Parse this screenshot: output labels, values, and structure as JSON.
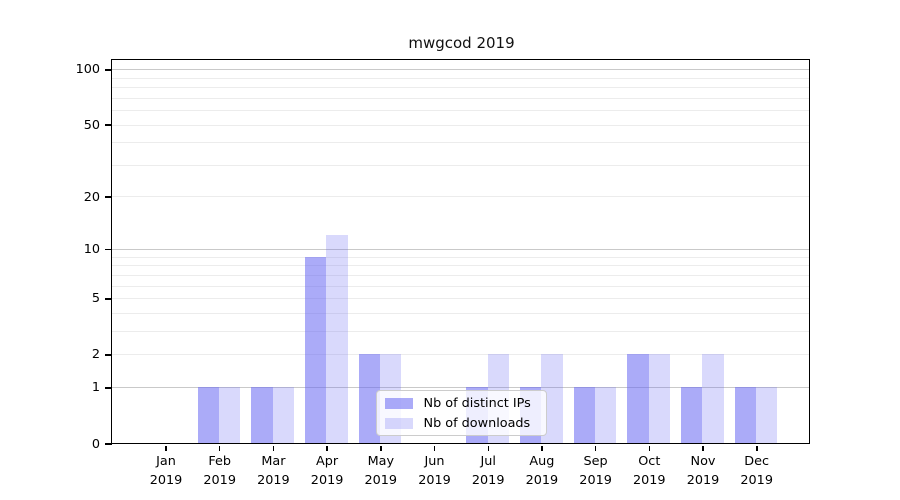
{
  "chart_data": {
    "type": "bar",
    "title": "mwgcod 2019",
    "x_tick_labels": [
      {
        "month": "Jan",
        "year": "2019"
      },
      {
        "month": "Feb",
        "year": "2019"
      },
      {
        "month": "Mar",
        "year": "2019"
      },
      {
        "month": "Apr",
        "year": "2019"
      },
      {
        "month": "May",
        "year": "2019"
      },
      {
        "month": "Jun",
        "year": "2019"
      },
      {
        "month": "Jul",
        "year": "2019"
      },
      {
        "month": "Aug",
        "year": "2019"
      },
      {
        "month": "Sep",
        "year": "2019"
      },
      {
        "month": "Oct",
        "year": "2019"
      },
      {
        "month": "Nov",
        "year": "2019"
      },
      {
        "month": "Dec",
        "year": "2019"
      }
    ],
    "series": [
      {
        "name": "Nb of distinct IPs",
        "color": "rgba(102,102,242,0.55)",
        "values": [
          0,
          1,
          1,
          9,
          2,
          0,
          1,
          1,
          1,
          2,
          1,
          1
        ]
      },
      {
        "name": "Nb of downloads",
        "color": "rgba(102,102,242,0.25)",
        "values": [
          0,
          1,
          1,
          12,
          2,
          0,
          2,
          2,
          1,
          2,
          2,
          1
        ]
      }
    ],
    "y_axis": {
      "scale": "log1p",
      "ticks": [
        0,
        1,
        2,
        5,
        10,
        20,
        50,
        100
      ],
      "limit": [
        0,
        112
      ]
    },
    "grid": {
      "major": [
        1,
        10,
        100
      ],
      "minor": [
        2,
        3,
        4,
        5,
        6,
        7,
        8,
        9,
        20,
        30,
        40,
        50,
        60,
        70,
        80,
        90
      ]
    },
    "legend": {
      "position": "lower center"
    }
  },
  "colors": {
    "bar_distinct_ips_flat": "#aaaaf8",
    "bar_downloads_flat": "#d8d8fb",
    "grid_major": "#c9c9c9",
    "grid_minor": "#ececec",
    "spine": "#000000",
    "text": "#000000",
    "legend_border": "#cccccc"
  }
}
